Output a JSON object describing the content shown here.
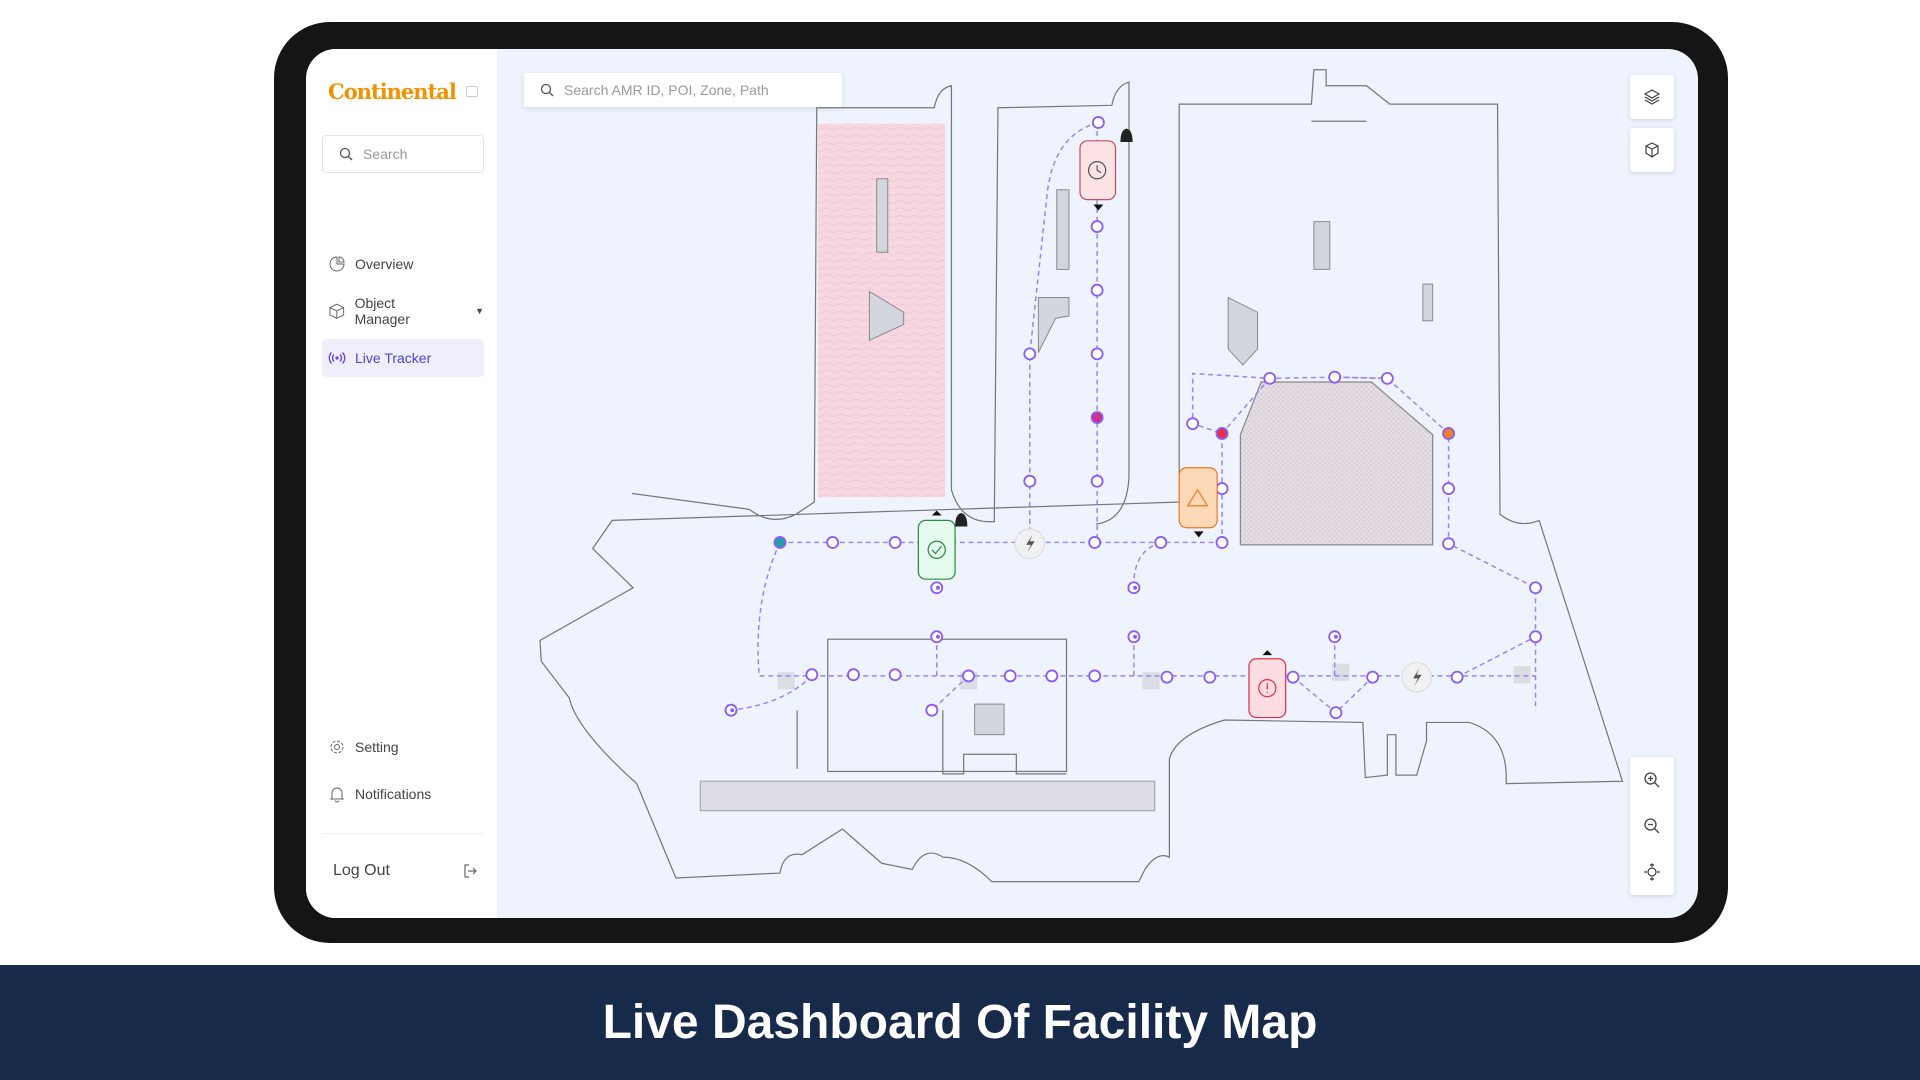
{
  "sidebar": {
    "logo": "Continental",
    "search_placeholder": "Search",
    "items": [
      {
        "label": "Overview",
        "icon": "chart-pie-icon"
      },
      {
        "label": "Object Manager",
        "icon": "cube-icon"
      },
      {
        "label": "Live Tracker",
        "icon": "broadcast-icon",
        "active": true
      }
    ],
    "bottom_items": [
      {
        "label": "Setting",
        "icon": "gear-icon"
      },
      {
        "label": "Notifications",
        "icon": "bell-icon"
      }
    ],
    "logout": "Log Out"
  },
  "map": {
    "search_placeholder": "Search AMR ID, POI, Zone, Path",
    "tools": [
      "layers-icon",
      "3d-cube-icon",
      "zoom-in-icon",
      "zoom-out-icon",
      "recenter-icon"
    ],
    "robots": [
      {
        "status": "ok",
        "icon": "check-icon",
        "color": "#2e8b3a"
      },
      {
        "status": "waiting",
        "icon": "clock-icon",
        "color": "#c05060"
      },
      {
        "status": "warning",
        "icon": "warning-icon",
        "color": "#f07a20"
      },
      {
        "status": "error",
        "icon": "error-icon",
        "color": "#e0304a"
      }
    ],
    "path_color": "#8b6cf6"
  },
  "caption": "Live Dashboard Of Facility Map"
}
